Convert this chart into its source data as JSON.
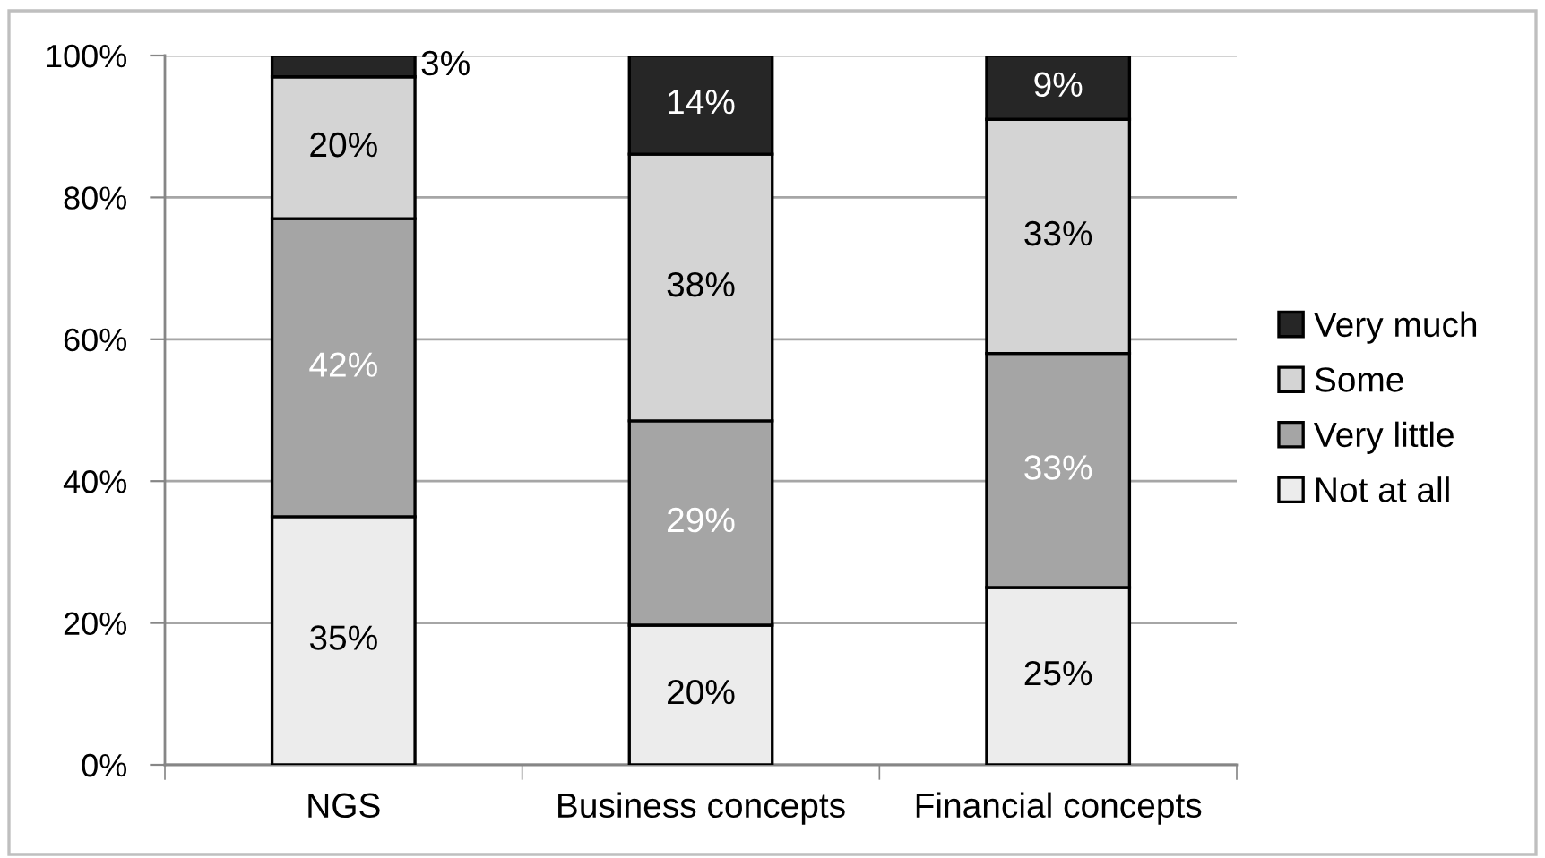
{
  "chart_data": {
    "type": "bar",
    "stacked": true,
    "categories": [
      "NGS",
      "Business concepts",
      "Financial concepts"
    ],
    "series": [
      {
        "name": "Not at all",
        "color": "#ececec",
        "values": [
          35,
          19.7,
          25
        ],
        "value_labels": [
          "35%",
          "20%",
          "25%"
        ]
      },
      {
        "name": "Very little",
        "color": "#a5a5a5",
        "values": [
          42,
          28.8,
          33
        ],
        "value_labels": [
          "42%",
          "29%",
          "33%"
        ]
      },
      {
        "name": "Some",
        "color": "#d4d4d4",
        "values": [
          20,
          37.6,
          33
        ],
        "value_labels": [
          "20%",
          "38%",
          "33%"
        ]
      },
      {
        "name": "Very much",
        "color": "#262626",
        "values": [
          3,
          13.9,
          9
        ],
        "value_labels": [
          "3%",
          "14%",
          "9%"
        ]
      }
    ],
    "ylim": [
      0,
      100
    ],
    "yticks": [
      {
        "value": 0,
        "label": "0%"
      },
      {
        "value": 20,
        "label": "20%"
      },
      {
        "value": 40,
        "label": "40%"
      },
      {
        "value": 60,
        "label": "60%"
      },
      {
        "value": 80,
        "label": "80%"
      },
      {
        "value": 100,
        "label": "100%"
      }
    ],
    "grid": "y",
    "legend": "right"
  }
}
